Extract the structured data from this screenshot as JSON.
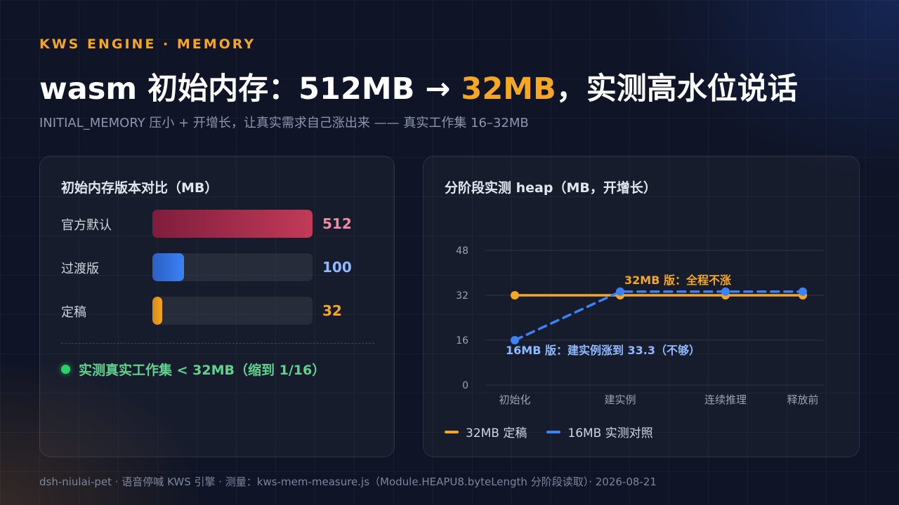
{
  "header": {
    "eyebrow": "KWS ENGINE · MEMORY",
    "title_prefix": "wasm 初始内存：512MB → ",
    "title_accent": "32MB",
    "title_suffix": "，实测高水位说话",
    "subtitle": "INITIAL_MEMORY 压小 + 开增长，让真实需求自己涨出来 —— 真实工作集 16–32MB"
  },
  "left_card": {
    "title": "初始内存版本对比（MB）",
    "note": "实测真实工作集 < 32MB（缩到 1/16）"
  },
  "right_card": {
    "title": "分阶段实测 heap（MB，开增长）"
  },
  "colors": {
    "accent": "#f5a623",
    "blue": "#3b82f6",
    "red_start": "#7f1d3c",
    "red_end": "#c23a58",
    "green": "#2fcf6a"
  },
  "chart_data": [
    {
      "type": "bar",
      "orientation": "horizontal",
      "title": "初始内存版本对比（MB）",
      "categories": [
        "官方默认",
        "过渡版",
        "定稿"
      ],
      "values": [
        512,
        100,
        32
      ],
      "value_labels": [
        "512",
        "100",
        "32"
      ],
      "value_colors": [
        "#f28aa0",
        "#8fb8ff",
        "#f5a623"
      ],
      "xlim": [
        0,
        512
      ]
    },
    {
      "type": "line",
      "title": "分阶段实测 heap（MB，开增长）",
      "categories": [
        "初始化",
        "建实例",
        "连续推理",
        "释放前"
      ],
      "yticks": [
        "0",
        "16",
        "32",
        "48"
      ],
      "ylim": [
        0,
        48
      ],
      "grid": true,
      "legend_position": "bottom-left",
      "series": [
        {
          "name": "32MB 定稿",
          "values": [
            32,
            32,
            32,
            32
          ],
          "color": "#f5a623",
          "style": "solid"
        },
        {
          "name": "16MB 实测对照",
          "values": [
            16,
            33.3,
            33.3,
            33.3
          ],
          "color": "#3b82f6",
          "style": "dashed"
        }
      ],
      "annotations": [
        {
          "text": "32MB 版：全程不涨",
          "color": "#f5a623"
        },
        {
          "text": "16MB 版：建实例涨到 33.3（不够）",
          "color": "#8fb8ff"
        }
      ]
    }
  ],
  "footer": "dsh-niulai-pet · 语音停喊 KWS 引擎 · 测量：kws-mem-measure.js（Module.HEAPU8.byteLength 分阶段读取）· 2026-08-21"
}
